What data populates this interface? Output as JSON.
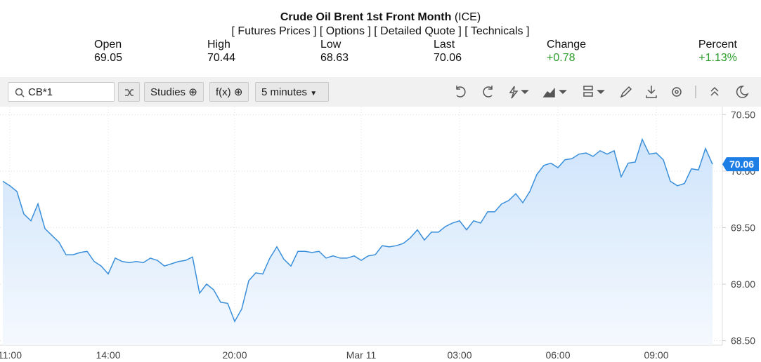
{
  "header": {
    "title": "Crude Oil Brent 1st Front Month",
    "exchange": "(ICE)",
    "links": [
      "[ Futures Prices ]",
      "[ Options ]",
      "[ Detailed Quote ]",
      "[ Technicals ]"
    ]
  },
  "quote": [
    {
      "label": "Open",
      "value": "69.05"
    },
    {
      "label": "High",
      "value": "70.44"
    },
    {
      "label": "Low",
      "value": "68.63"
    },
    {
      "label": "Last",
      "value": "70.06"
    },
    {
      "label": "Change",
      "value": "+0.78"
    },
    {
      "label": "Percent",
      "value": "+1.13%"
    }
  ],
  "toolbar": {
    "symbol": "CB*1",
    "studies": "Studies",
    "fx": "f(x)",
    "interval": "5 minutes"
  },
  "chart_data": {
    "type": "line",
    "color": "#3a8fdb",
    "grid": true,
    "categories": [
      null,
      "11:00",
      null,
      null,
      null,
      null,
      null,
      null,
      null,
      null,
      null,
      null,
      null,
      null,
      null,
      "14:00",
      null,
      null,
      null,
      null,
      null,
      null,
      null,
      null,
      null,
      null,
      null,
      null,
      null,
      null,
      null,
      null,
      null,
      "20:00",
      null,
      null,
      null,
      null,
      null,
      null,
      null,
      null,
      null,
      null,
      null,
      null,
      null,
      null,
      null,
      null,
      null,
      "Mar 11",
      null,
      null,
      null,
      null,
      null,
      null,
      null,
      null,
      null,
      null,
      null,
      null,
      null,
      "03:00",
      null,
      null,
      null,
      null,
      null,
      null,
      null,
      null,
      null,
      null,
      null,
      null,
      null,
      "06:00",
      null,
      null,
      null,
      null,
      null,
      null,
      null,
      null,
      null,
      null,
      null,
      null,
      null,
      "09:00",
      null,
      null,
      null,
      null,
      null,
      null,
      null,
      null
    ],
    "values": [
      69.91,
      69.87,
      69.82,
      69.62,
      69.56,
      69.71,
      69.49,
      69.43,
      69.37,
      69.26,
      69.26,
      69.28,
      69.29,
      69.2,
      69.16,
      69.09,
      69.23,
      69.2,
      69.19,
      69.2,
      69.19,
      69.23,
      69.21,
      69.16,
      69.18,
      69.2,
      69.21,
      69.24,
      68.92,
      69.0,
      68.95,
      68.84,
      68.83,
      68.67,
      68.78,
      69.03,
      69.1,
      69.09,
      69.23,
      69.33,
      69.22,
      69.16,
      69.29,
      69.29,
      69.28,
      69.29,
      69.23,
      69.25,
      69.23,
      69.23,
      69.25,
      69.21,
      69.25,
      69.26,
      69.34,
      69.33,
      69.34,
      69.36,
      69.41,
      69.48,
      69.39,
      69.46,
      69.46,
      69.51,
      69.54,
      69.56,
      69.48,
      69.56,
      69.54,
      69.64,
      69.64,
      69.71,
      69.74,
      69.8,
      69.72,
      69.82,
      69.97,
      70.05,
      70.07,
      70.03,
      70.1,
      70.11,
      70.15,
      70.16,
      70.13,
      70.18,
      70.15,
      70.18,
      69.95,
      70.07,
      70.08,
      70.28,
      70.15,
      70.16,
      70.1,
      69.91,
      69.87,
      69.89,
      70.02,
      70.01,
      70.2,
      70.06
    ],
    "ylim": [
      68.46,
      70.57
    ],
    "yticks": [
      {
        "value": 68.5,
        "label": "68.50"
      },
      {
        "value": 69,
        "label": "69.00"
      },
      {
        "value": 69.5,
        "label": "69.50"
      },
      {
        "value": 70,
        "label": "70.00"
      },
      {
        "value": 70.5,
        "label": "70.50"
      }
    ]
  }
}
